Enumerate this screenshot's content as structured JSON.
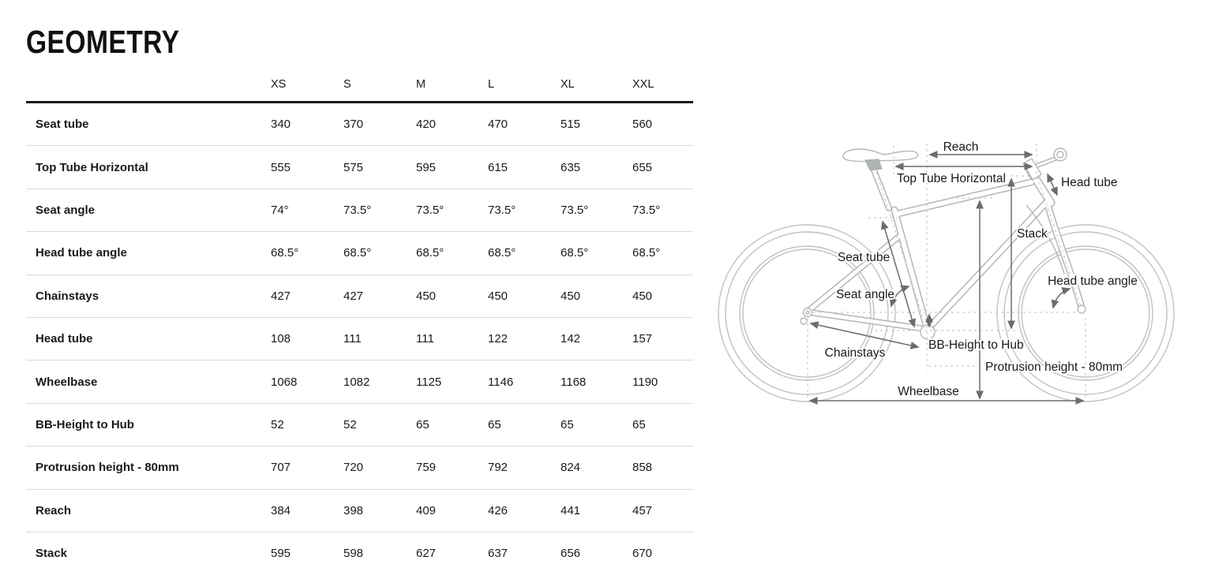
{
  "page": {
    "title": "GEOMETRY"
  },
  "table": {
    "size_headers": [
      "XS",
      "S",
      "M",
      "L",
      "XL",
      "XXL"
    ],
    "rows": [
      {
        "label": "Seat tube",
        "values": [
          "340",
          "370",
          "420",
          "470",
          "515",
          "560"
        ]
      },
      {
        "label": "Top Tube Horizontal",
        "values": [
          "555",
          "575",
          "595",
          "615",
          "635",
          "655"
        ]
      },
      {
        "label": "Seat angle",
        "values": [
          "74°",
          "73.5°",
          "73.5°",
          "73.5°",
          "73.5°",
          "73.5°"
        ]
      },
      {
        "label": "Head tube angle",
        "values": [
          "68.5°",
          "68.5°",
          "68.5°",
          "68.5°",
          "68.5°",
          "68.5°"
        ]
      },
      {
        "label": "Chainstays",
        "values": [
          "427",
          "427",
          "450",
          "450",
          "450",
          "450"
        ]
      },
      {
        "label": "Head tube",
        "values": [
          "108",
          "111",
          "111",
          "122",
          "142",
          "157"
        ]
      },
      {
        "label": "Wheelbase",
        "values": [
          "1068",
          "1082",
          "1125",
          "1146",
          "1168",
          "1190"
        ]
      },
      {
        "label": "BB-Height to Hub",
        "values": [
          "52",
          "52",
          "65",
          "65",
          "65",
          "65"
        ]
      },
      {
        "label": "Protrusion height - 80mm",
        "values": [
          "707",
          "720",
          "759",
          "792",
          "824",
          "858"
        ]
      },
      {
        "label": "Reach",
        "values": [
          "384",
          "398",
          "409",
          "426",
          "441",
          "457"
        ]
      },
      {
        "label": "Stack",
        "values": [
          "595",
          "598",
          "627",
          "637",
          "656",
          "670"
        ]
      }
    ]
  },
  "diagram": {
    "labels": {
      "reach": "Reach",
      "top_tube_horizontal": "Top Tube Horizontal",
      "head_tube": "Head tube",
      "stack": "Stack",
      "seat_tube": "Seat tube",
      "seat_angle": "Seat angle",
      "head_tube_angle": "Head tube angle",
      "chainstays": "Chainstays",
      "bb_height_to_hub": "BB-Height to Hub",
      "protrusion_height": "Protrusion height - 80mm",
      "wheelbase": "Wheelbase"
    }
  },
  "colors": {
    "text": "#1a1a1a",
    "table_header_rule": "#1a1a1a",
    "row_divider": "#dadada",
    "bike_outline": "#b4b6b8",
    "dimension_arrow": "#696d6f",
    "dashed_guide": "#c9cbcb"
  }
}
